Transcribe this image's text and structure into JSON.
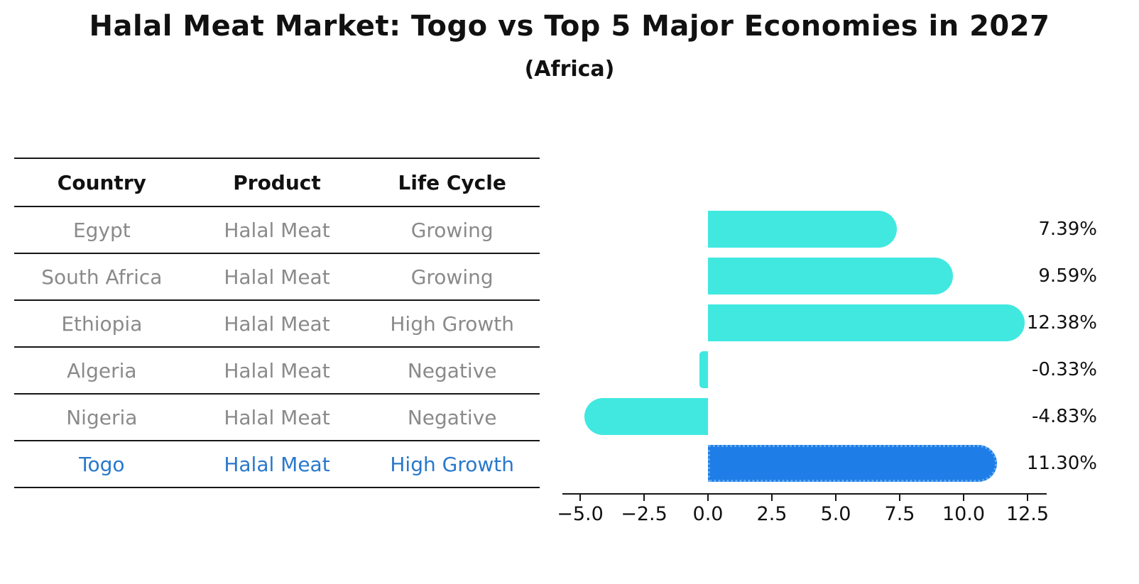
{
  "title": "Halal Meat Market: Togo vs Top 5 Major Economies in 2027",
  "subtitle": "(Africa)",
  "table": {
    "columns": [
      "Country",
      "Product",
      "Life Cycle"
    ],
    "rows": [
      {
        "country": "Egypt",
        "product": "Halal Meat",
        "life_cycle": "Growing",
        "highlight": false
      },
      {
        "country": "South Africa",
        "product": "Halal Meat",
        "life_cycle": "Growing",
        "highlight": false
      },
      {
        "country": "Ethiopia",
        "product": "Halal Meat",
        "life_cycle": "High Growth",
        "highlight": false
      },
      {
        "country": "Algeria",
        "product": "Halal Meat",
        "life_cycle": "Negative",
        "highlight": false
      },
      {
        "country": "Nigeria",
        "product": "Halal Meat",
        "life_cycle": "Negative",
        "highlight": false
      },
      {
        "country": "Togo",
        "product": "Halal Meat",
        "life_cycle": "High Growth",
        "highlight": true
      }
    ]
  },
  "chart_data": {
    "type": "bar",
    "orientation": "horizontal",
    "title": "Halal Meat Market: Togo vs Top 5 Major Economies in 2027",
    "subtitle": "(Africa)",
    "categories": [
      "Egypt",
      "South Africa",
      "Ethiopia",
      "Algeria",
      "Nigeria",
      "Togo"
    ],
    "values": [
      7.39,
      9.59,
      12.38,
      -0.33,
      -4.83,
      11.3
    ],
    "value_labels": [
      "7.39%",
      "9.59%",
      "12.38%",
      "-0.33%",
      "-4.83%",
      "11.30%"
    ],
    "xlabel": "",
    "ylabel": "",
    "xlim": [
      -5.7,
      13.25
    ],
    "xticks": [
      {
        "v": -5.0,
        "label": "−5.0"
      },
      {
        "v": -2.5,
        "label": "−2.5"
      },
      {
        "v": 0.0,
        "label": "0.0"
      },
      {
        "v": 2.5,
        "label": "2.5"
      },
      {
        "v": 5.0,
        "label": "5.0"
      },
      {
        "v": 7.5,
        "label": "7.5"
      },
      {
        "v": 10.0,
        "label": "10.0"
      },
      {
        "v": 12.5,
        "label": "12.5"
      }
    ],
    "grid": false,
    "legend": false,
    "highlight_index": 5,
    "highlight_border_style": "dotted"
  },
  "colors": {
    "bar_cyan": "#40E8E0",
    "bar_blue": "#1E7DE6",
    "bar_blue_border": "#5DA8F1",
    "highlight_text": "#2878CC",
    "muted_text": "#8a8a8a",
    "line": "#161616",
    "text": "#111111"
  }
}
